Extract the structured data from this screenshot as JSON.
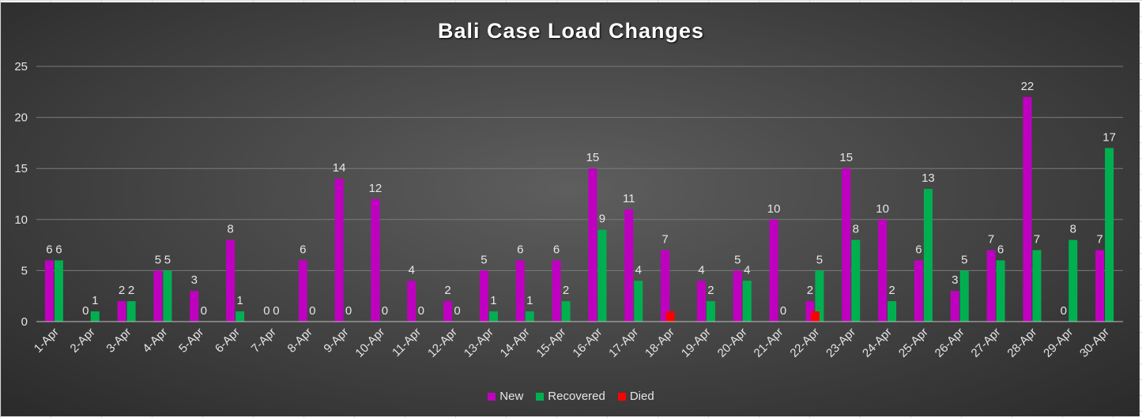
{
  "chart_data": {
    "type": "bar",
    "title": "Bali Case Load Changes",
    "xlabel": "",
    "ylabel": "",
    "ylim": [
      0,
      25
    ],
    "yticks": [
      "0",
      "5",
      "10",
      "15",
      "20",
      "25"
    ],
    "grid": true,
    "legend_position": "bottom",
    "categories": [
      "1-Apr",
      "2-Apr",
      "3-Apr",
      "4-Apr",
      "5-Apr",
      "6-Apr",
      "7-Apr",
      "8-Apr",
      "9-Apr",
      "10-Apr",
      "11-Apr",
      "12-Apr",
      "13-Apr",
      "14-Apr",
      "15-Apr",
      "16-Apr",
      "17-Apr",
      "18-Apr",
      "19-Apr",
      "20-Apr",
      "21-Apr",
      "22-Apr",
      "23-Apr",
      "24-Apr",
      "25-Apr",
      "26-Apr",
      "27-Apr",
      "28-Apr",
      "29-Apr",
      "30-Apr"
    ],
    "series": [
      {
        "name": "New",
        "color": "#c000c0",
        "values": [
          6,
          0,
          2,
          5,
          3,
          8,
          0,
          6,
          14,
          12,
          4,
          2,
          5,
          6,
          6,
          15,
          11,
          7,
          4,
          5,
          10,
          2,
          15,
          10,
          6,
          3,
          7,
          22,
          0,
          7
        ],
        "labels": [
          "6",
          "0",
          "2",
          "5",
          "3",
          "8",
          "0",
          "6",
          "14",
          "12",
          "4",
          "2",
          "5",
          "6",
          "6",
          "15",
          "11",
          "7",
          "4",
          "5",
          "10",
          "2",
          "15",
          "10",
          "6",
          "3",
          "7",
          "22",
          "0",
          "7"
        ]
      },
      {
        "name": "Recovered",
        "color": "#00b050",
        "values": [
          6,
          1,
          2,
          5,
          0,
          1,
          0,
          0,
          0,
          0,
          0,
          0,
          1,
          1,
          2,
          9,
          4,
          0,
          2,
          4,
          0,
          5,
          8,
          2,
          13,
          5,
          6,
          7,
          8,
          17
        ],
        "labels": [
          "6",
          "1",
          "2",
          "5",
          "0",
          "1",
          "0",
          "0",
          "0",
          "0",
          "0",
          "0",
          "1",
          "1",
          "2",
          "9",
          "4",
          "",
          "2",
          "4",
          "0",
          "5",
          "8",
          "2",
          "13",
          "5",
          "6",
          "7",
          "8",
          "17"
        ]
      },
      {
        "name": "Died",
        "color": "#ff0000",
        "values": [
          0,
          0,
          0,
          0,
          0,
          0,
          0,
          0,
          0,
          0,
          0,
          0,
          0,
          0,
          0,
          0,
          0,
          1,
          0,
          0,
          0,
          1,
          0,
          0,
          0,
          0,
          0,
          0,
          0,
          0
        ],
        "labels": [
          "",
          "",
          "",
          "",
          "",
          "",
          "",
          "",
          "",
          "",
          "",
          "",
          "",
          "",
          "",
          "",
          "",
          "",
          "",
          "",
          "",
          "",
          "",
          "",
          "",
          "",
          "",
          "",
          "",
          ""
        ]
      }
    ]
  }
}
